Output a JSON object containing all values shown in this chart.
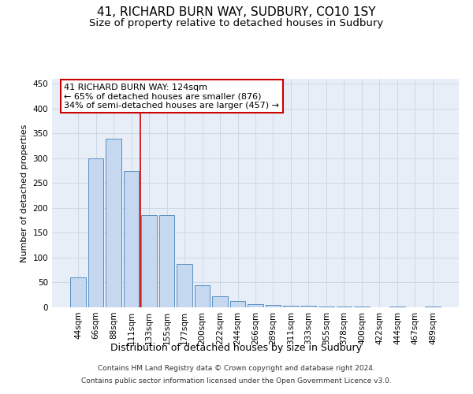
{
  "title": "41, RICHARD BURN WAY, SUDBURY, CO10 1SY",
  "subtitle": "Size of property relative to detached houses in Sudbury",
  "xlabel": "Distribution of detached houses by size in Sudbury",
  "ylabel": "Number of detached properties",
  "categories": [
    "44sqm",
    "66sqm",
    "88sqm",
    "111sqm",
    "133sqm",
    "155sqm",
    "177sqm",
    "200sqm",
    "222sqm",
    "244sqm",
    "266sqm",
    "289sqm",
    "311sqm",
    "333sqm",
    "355sqm",
    "378sqm",
    "400sqm",
    "422sqm",
    "444sqm",
    "467sqm",
    "489sqm"
  ],
  "values": [
    60,
    300,
    340,
    275,
    185,
    185,
    88,
    45,
    22,
    12,
    7,
    5,
    3,
    3,
    2,
    1,
    1,
    0,
    2,
    0,
    2
  ],
  "bar_color": "#c5d8f0",
  "bar_edgecolor": "#5a8fc0",
  "grid_color": "#c8d4e4",
  "background_color": "#e8eef8",
  "red_line_x": 3.5,
  "red_line_color": "#cc0000",
  "annotation_line1": "41 RICHARD BURN WAY: 124sqm",
  "annotation_line2": "← 65% of detached houses are smaller (876)",
  "annotation_line3": "34% of semi-detached houses are larger (457) →",
  "annotation_box_facecolor": "#ffffff",
  "annotation_box_edgecolor": "#cc0000",
  "ylim": [
    0,
    460
  ],
  "yticks": [
    0,
    50,
    100,
    150,
    200,
    250,
    300,
    350,
    400,
    450
  ],
  "footer_line1": "Contains HM Land Registry data © Crown copyright and database right 2024.",
  "footer_line2": "Contains public sector information licensed under the Open Government Licence v3.0.",
  "title_fontsize": 11,
  "subtitle_fontsize": 9.5,
  "xlabel_fontsize": 9,
  "ylabel_fontsize": 8,
  "tick_fontsize": 7.5,
  "annotation_fontsize": 8,
  "footer_fontsize": 6.5
}
